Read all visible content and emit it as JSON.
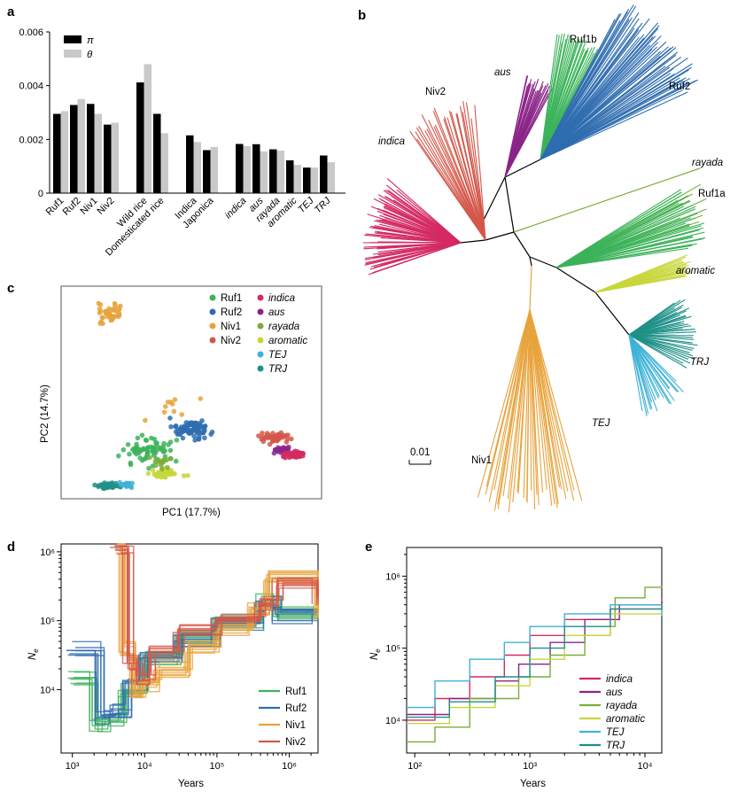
{
  "colors": {
    "Ruf1": "#3cb35a",
    "Ruf2": "#2f6db0",
    "Niv1": "#e8a33c",
    "Niv2": "#d4574a",
    "indica": "#d42a63",
    "aus": "#8b2488",
    "rayada": "#7aae3a",
    "aromatic": "#c8d63a",
    "TEJ": "#3fb2d8",
    "TRJ": "#1f9088",
    "pi": "#000000",
    "theta": "#c9c9c9"
  },
  "chart_data": [
    {
      "panel": "a",
      "type": "bar",
      "legend": [
        "π",
        "θ"
      ],
      "yticks": [
        "0",
        "0.002",
        "0.004",
        "0.006"
      ],
      "ylim": [
        0,
        0.006
      ],
      "categories": [
        "Ruf1",
        "Ruf2",
        "Niv1",
        "Niv2",
        "Wild rice",
        "Domesticated rice",
        "Indica",
        "Japonica",
        "indica",
        "aus",
        "rayada",
        "aromatic",
        "TEJ",
        "TRJ"
      ],
      "italic_categories": [
        "indica",
        "aus",
        "rayada",
        "aromatic",
        "TEJ",
        "TRJ"
      ],
      "groups": [
        [
          0,
          1,
          2,
          3
        ],
        [
          4,
          5
        ],
        [
          6,
          7
        ],
        [
          8,
          9,
          10,
          11,
          12,
          13
        ]
      ],
      "series": [
        {
          "name": "π",
          "values": [
            0.00295,
            0.00328,
            0.00332,
            0.00255,
            0.00412,
            0.00295,
            0.00215,
            0.0016,
            0.00183,
            0.00182,
            0.00163,
            0.00122,
            0.00095,
            0.0014
          ]
        },
        {
          "name": "θ",
          "values": [
            0.00305,
            0.0035,
            0.00295,
            0.00262,
            0.0048,
            0.00223,
            0.0019,
            0.00172,
            0.00175,
            0.00155,
            0.00158,
            0.00105,
            0.00095,
            0.00115
          ]
        }
      ]
    },
    {
      "panel": "b",
      "type": "tree",
      "labels": [
        "Ruf1b",
        "aus",
        "Niv2",
        "Ruf2",
        "indica",
        "rayada",
        "Ruf1a",
        "aromatic",
        "TRJ",
        "TEJ",
        "Niv1"
      ],
      "scale_label": "0.01"
    },
    {
      "panel": "c",
      "type": "scatter",
      "xlabel": "PC1 (17.7%)",
      "ylabel": "PC2 (14.7%)",
      "legend": [
        "Ruf1",
        "Ruf2",
        "Niv1",
        "Niv2",
        "indica",
        "aus",
        "rayada",
        "aromatic",
        "TEJ",
        "TRJ"
      ],
      "italic_legend": [
        "indica",
        "aus",
        "rayada",
        "aromatic",
        "TEJ",
        "TRJ"
      ],
      "xlim": [
        0,
        1
      ],
      "ylim": [
        0,
        1
      ],
      "clusters": [
        {
          "group": "Niv1",
          "cx": 0.18,
          "cy": 0.88,
          "sx": 0.035,
          "sy": 0.05,
          "n": 45
        },
        {
          "group": "Niv1",
          "cx": 0.4,
          "cy": 0.45,
          "sx": 0.12,
          "sy": 0.08,
          "n": 10
        },
        {
          "group": "Ruf2",
          "cx": 0.5,
          "cy": 0.32,
          "sx": 0.07,
          "sy": 0.04,
          "n": 90
        },
        {
          "group": "Ruf1",
          "cx": 0.33,
          "cy": 0.22,
          "sx": 0.1,
          "sy": 0.07,
          "n": 70
        },
        {
          "group": "aromatic",
          "cx": 0.4,
          "cy": 0.11,
          "sx": 0.06,
          "sy": 0.02,
          "n": 35
        },
        {
          "group": "TRJ",
          "cx": 0.18,
          "cy": 0.05,
          "sx": 0.05,
          "sy": 0.012,
          "n": 45
        },
        {
          "group": "TEJ",
          "cx": 0.25,
          "cy": 0.055,
          "sx": 0.03,
          "sy": 0.01,
          "n": 25
        },
        {
          "group": "rayada",
          "cx": 0.38,
          "cy": 0.16,
          "sx": 0.05,
          "sy": 0.03,
          "n": 15
        },
        {
          "group": "Niv2",
          "cx": 0.83,
          "cy": 0.28,
          "sx": 0.06,
          "sy": 0.025,
          "n": 50
        },
        {
          "group": "aus",
          "cx": 0.86,
          "cy": 0.22,
          "sx": 0.04,
          "sy": 0.015,
          "n": 25
        },
        {
          "group": "indica",
          "cx": 0.9,
          "cy": 0.2,
          "sx": 0.04,
          "sy": 0.015,
          "n": 70
        }
      ]
    },
    {
      "panel": "d",
      "type": "line",
      "xlabel": "Years",
      "ylabel": "Ne",
      "xticks": [
        "10³",
        "10⁴",
        "10⁵",
        "10⁶"
      ],
      "yticks": [
        "10⁴",
        "10⁵",
        "10⁶"
      ],
      "log_x": true,
      "log_y": true,
      "xlim": [
        700,
        2500000
      ],
      "ylim": [
        1200,
        1300000
      ],
      "legend": [
        "Ruf1",
        "Ruf2",
        "Niv1",
        "Niv2"
      ],
      "series": [
        {
          "name": "Ruf1",
          "x": [
            1000,
            2000,
            3000,
            5000,
            10000,
            30000,
            100000,
            400000,
            700000,
            2500000
          ],
          "y": [
            15000,
            3000,
            3500,
            10000,
            30000,
            60000,
            100000,
            200000,
            130000,
            130000
          ]
        },
        {
          "name": "Ruf2",
          "x": [
            1000,
            2500,
            4000,
            6000,
            10000,
            30000,
            100000,
            400000,
            700000,
            2500000
          ],
          "y": [
            40000,
            4000,
            5000,
            12000,
            28000,
            55000,
            90000,
            180000,
            120000,
            130000
          ]
        },
        {
          "name": "Niv1",
          "x": [
            4500,
            5000,
            7000,
            9000,
            15000,
            40000,
            100000,
            300000,
            500000,
            2500000
          ],
          "y": [
            1200000,
            40000,
            8000,
            12000,
            20000,
            45000,
            80000,
            150000,
            450000,
            120000
          ]
        },
        {
          "name": "Niv2",
          "x": [
            4000,
            6000,
            8000,
            12000,
            30000,
            100000,
            400000,
            700000,
            2500000
          ],
          "y": [
            1200000,
            25000,
            15000,
            35000,
            70000,
            100000,
            170000,
            350000,
            200000
          ]
        }
      ]
    },
    {
      "panel": "e",
      "type": "line",
      "xlabel": "Years",
      "ylabel": "Ne",
      "xticks": [
        "10²",
        "10³",
        "10⁴"
      ],
      "yticks": [
        "10⁴",
        "10⁵",
        "10⁶"
      ],
      "log_x": true,
      "log_y": true,
      "xlim": [
        85,
        14000
      ],
      "ylim": [
        3500,
        2500000
      ],
      "legend": [
        "indica",
        "aus",
        "rayada",
        "aromatic",
        "TEJ",
        "TRJ"
      ],
      "series": [
        {
          "name": "indica",
          "x": [
            85,
            150,
            300,
            600,
            1000,
            2000,
            5000,
            14000
          ],
          "y": [
            10000,
            20000,
            40000,
            80000,
            150000,
            250000,
            350000,
            480000
          ]
        },
        {
          "name": "aus",
          "x": [
            85,
            200,
            500,
            800,
            1500,
            3000,
            6000,
            14000
          ],
          "y": [
            12000,
            20000,
            35000,
            60000,
            120000,
            250000,
            400000,
            450000
          ]
        },
        {
          "name": "rayada",
          "x": [
            85,
            150,
            300,
            800,
            1500,
            3000,
            5000,
            5500,
            10000,
            14000
          ],
          "y": [
            5000,
            8000,
            20000,
            40000,
            80000,
            150000,
            200000,
            500000,
            700000,
            720000
          ]
        },
        {
          "name": "aromatic",
          "x": [
            85,
            200,
            500,
            1000,
            2000,
            5000,
            14000
          ],
          "y": [
            9000,
            15000,
            30000,
            70000,
            150000,
            300000,
            400000
          ]
        },
        {
          "name": "TEJ",
          "x": [
            85,
            150,
            300,
            600,
            1000,
            2000,
            5000,
            10000,
            14000
          ],
          "y": [
            15000,
            35000,
            70000,
            120000,
            200000,
            300000,
            400000,
            400000,
            280000
          ]
        },
        {
          "name": "TRJ",
          "x": [
            85,
            200,
            500,
            1000,
            2000,
            5000,
            14000
          ],
          "y": [
            11000,
            18000,
            40000,
            100000,
            200000,
            350000,
            400000
          ]
        }
      ]
    }
  ]
}
